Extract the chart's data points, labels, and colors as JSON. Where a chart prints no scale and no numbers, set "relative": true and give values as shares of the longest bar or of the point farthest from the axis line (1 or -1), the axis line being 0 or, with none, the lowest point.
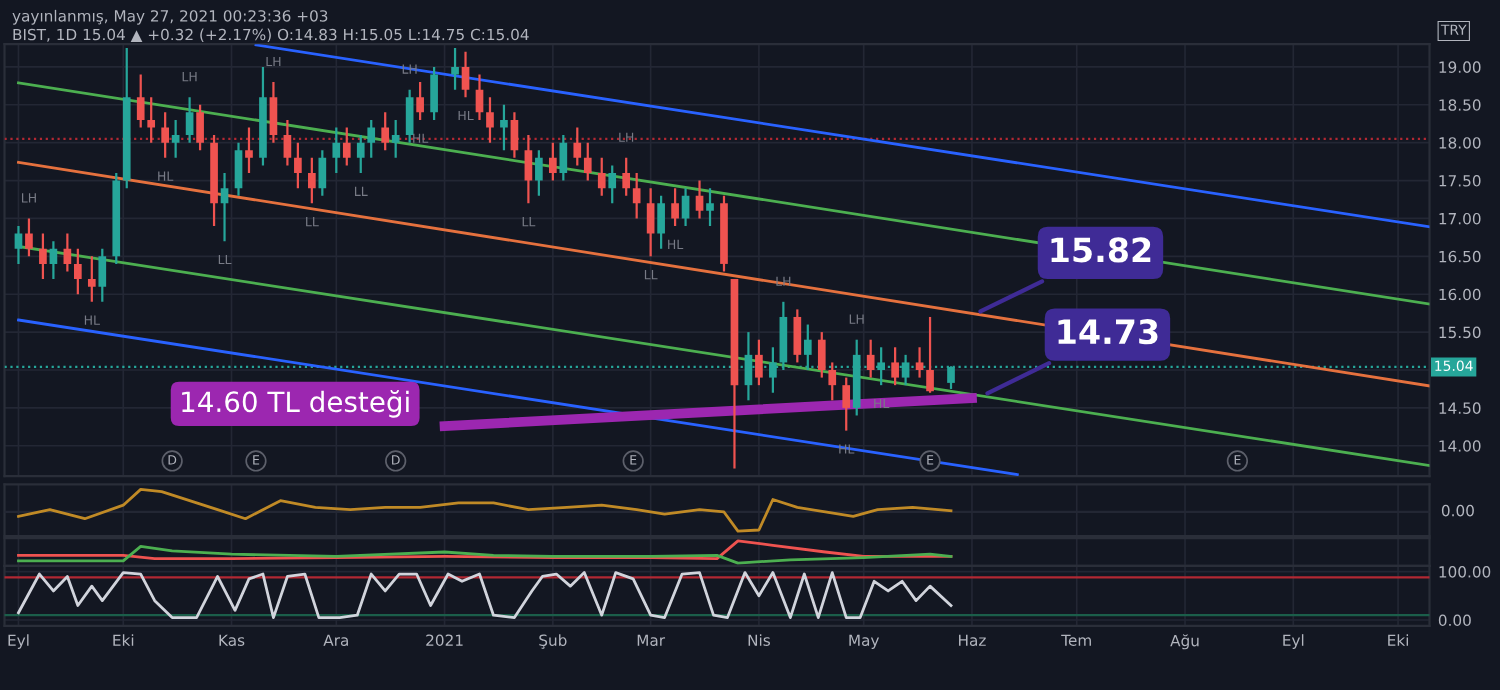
{
  "chart_data": [
    {
      "type": "candlestick",
      "title": "yayınlanmış, May 27, 2021 00:23:36 +03",
      "subtitle": "BIST, 1D 15.04 ▲ +0.32 (+2.17%) O:14.83 H:15.05 L:14.75 C:15.04",
      "ylabel": "TRY",
      "x": [
        "2020-09-01",
        "2020-09-04",
        "2020-09-08",
        "2020-09-11",
        "2020-09-15",
        "2020-09-18",
        "2020-09-22",
        "2020-09-25",
        "2020-09-29",
        "2020-10-02",
        "2020-10-06",
        "2020-10-09",
        "2020-10-13",
        "2020-10-16",
        "2020-10-20",
        "2020-10-23",
        "2020-10-27",
        "2020-10-30",
        "2020-11-03",
        "2020-11-06",
        "2020-11-10",
        "2020-11-13",
        "2020-11-17",
        "2020-11-20",
        "2020-11-24",
        "2020-11-27",
        "2020-12-01",
        "2020-12-04",
        "2020-12-08",
        "2020-12-11",
        "2020-12-15",
        "2020-12-18",
        "2020-12-22",
        "2020-12-25",
        "2020-12-29",
        "2021-01-04",
        "2021-01-07",
        "2021-01-11",
        "2021-01-14",
        "2021-01-18",
        "2021-01-21",
        "2021-01-25",
        "2021-01-28",
        "2021-02-01",
        "2021-02-04",
        "2021-02-08",
        "2021-02-11",
        "2021-02-15",
        "2021-02-18",
        "2021-02-22",
        "2021-02-25",
        "2021-03-01",
        "2021-03-04",
        "2021-03-08",
        "2021-03-11",
        "2021-03-15",
        "2021-03-18",
        "2021-03-22",
        "2021-03-25",
        "2021-03-29",
        "2021-04-01",
        "2021-04-05",
        "2021-04-08",
        "2021-04-12",
        "2021-04-15",
        "2021-04-19",
        "2021-04-22",
        "2021-04-26",
        "2021-04-29",
        "2021-05-03",
        "2021-05-06",
        "2021-05-10",
        "2021-05-13",
        "2021-05-17",
        "2021-05-20",
        "2021-05-26"
      ],
      "ohlc": [
        [
          16.6,
          16.9,
          16.4,
          16.8
        ],
        [
          16.8,
          17.0,
          16.5,
          16.6
        ],
        [
          16.6,
          16.8,
          16.2,
          16.4
        ],
        [
          16.4,
          16.7,
          16.2,
          16.6
        ],
        [
          16.6,
          16.8,
          16.3,
          16.4
        ],
        [
          16.4,
          16.6,
          16.0,
          16.2
        ],
        [
          16.2,
          16.5,
          15.9,
          16.1
        ],
        [
          16.1,
          16.6,
          15.9,
          16.5
        ],
        [
          16.5,
          17.6,
          16.4,
          17.5
        ],
        [
          17.5,
          19.25,
          17.4,
          18.6
        ],
        [
          18.6,
          18.9,
          18.2,
          18.3
        ],
        [
          18.3,
          18.6,
          18.0,
          18.2
        ],
        [
          18.2,
          18.4,
          17.8,
          18.0
        ],
        [
          18.0,
          18.3,
          17.8,
          18.1
        ],
        [
          18.1,
          18.6,
          18.0,
          18.4
        ],
        [
          18.4,
          18.5,
          17.9,
          18.0
        ],
        [
          18.0,
          18.1,
          16.9,
          17.2
        ],
        [
          17.2,
          17.6,
          16.7,
          17.4
        ],
        [
          17.4,
          18.0,
          17.3,
          17.9
        ],
        [
          17.9,
          18.2,
          17.6,
          17.8
        ],
        [
          17.8,
          19.0,
          17.7,
          18.6
        ],
        [
          18.6,
          18.8,
          18.0,
          18.1
        ],
        [
          18.1,
          18.3,
          17.7,
          17.8
        ],
        [
          17.8,
          18.0,
          17.4,
          17.6
        ],
        [
          17.6,
          17.8,
          17.2,
          17.4
        ],
        [
          17.4,
          17.9,
          17.3,
          17.8
        ],
        [
          17.8,
          18.2,
          17.6,
          18.0
        ],
        [
          18.0,
          18.2,
          17.7,
          17.8
        ],
        [
          17.8,
          18.1,
          17.6,
          18.0
        ],
        [
          18.0,
          18.3,
          17.8,
          18.2
        ],
        [
          18.2,
          18.4,
          17.9,
          18.0
        ],
        [
          18.0,
          18.3,
          17.8,
          18.1
        ],
        [
          18.1,
          18.7,
          18.0,
          18.6
        ],
        [
          18.6,
          18.8,
          18.3,
          18.4
        ],
        [
          18.4,
          19.0,
          18.3,
          18.9
        ],
        [
          18.9,
          19.25,
          18.7,
          19.0
        ],
        [
          19.0,
          19.2,
          18.6,
          18.7
        ],
        [
          18.7,
          18.9,
          18.3,
          18.4
        ],
        [
          18.4,
          18.6,
          18.0,
          18.2
        ],
        [
          18.2,
          18.5,
          17.9,
          18.3
        ],
        [
          18.3,
          18.4,
          17.8,
          17.9
        ],
        [
          17.9,
          18.1,
          17.2,
          17.5
        ],
        [
          17.5,
          17.9,
          17.3,
          17.8
        ],
        [
          17.8,
          18.0,
          17.5,
          17.6
        ],
        [
          17.6,
          18.1,
          17.5,
          18.0
        ],
        [
          18.0,
          18.2,
          17.7,
          17.8
        ],
        [
          17.8,
          18.0,
          17.5,
          17.6
        ],
        [
          17.6,
          17.8,
          17.3,
          17.4
        ],
        [
          17.4,
          17.7,
          17.2,
          17.6
        ],
        [
          17.6,
          17.8,
          17.3,
          17.4
        ],
        [
          17.4,
          17.6,
          17.0,
          17.2
        ],
        [
          17.2,
          17.4,
          16.5,
          16.8
        ],
        [
          16.8,
          17.3,
          16.6,
          17.2
        ],
        [
          17.2,
          17.4,
          16.9,
          17.0
        ],
        [
          17.0,
          17.4,
          16.9,
          17.3
        ],
        [
          17.3,
          17.5,
          17.0,
          17.1
        ],
        [
          17.1,
          17.4,
          16.9,
          17.2
        ],
        [
          17.2,
          17.3,
          16.3,
          16.4
        ],
        [
          16.2,
          16.2,
          13.7,
          14.8
        ],
        [
          14.8,
          15.5,
          14.6,
          15.2
        ],
        [
          15.2,
          15.4,
          14.8,
          14.9
        ],
        [
          14.9,
          15.3,
          14.7,
          15.1
        ],
        [
          15.1,
          15.9,
          15.0,
          15.7
        ],
        [
          15.7,
          15.8,
          15.1,
          15.2
        ],
        [
          15.2,
          15.6,
          15.0,
          15.4
        ],
        [
          15.4,
          15.5,
          14.9,
          15.0
        ],
        [
          15.0,
          15.1,
          14.6,
          14.8
        ],
        [
          14.8,
          14.9,
          14.2,
          14.5
        ],
        [
          14.5,
          15.4,
          14.4,
          15.2
        ],
        [
          15.2,
          15.4,
          14.9,
          15.0
        ],
        [
          15.0,
          15.3,
          14.8,
          15.1
        ],
        [
          15.1,
          15.3,
          14.8,
          14.9
        ],
        [
          14.9,
          15.2,
          14.8,
          15.1
        ],
        [
          15.1,
          15.3,
          14.9,
          15.0
        ],
        [
          15.0,
          15.7,
          14.7,
          14.72
        ],
        [
          14.83,
          15.05,
          14.75,
          15.04
        ]
      ],
      "colors": [
        "#26a69a",
        "#ef5350",
        "#ef5350",
        "#26a69a",
        "#ef5350",
        "#ef5350",
        "#ef5350",
        "#26a69a",
        "#26a69a",
        "#26a69a",
        "#ef5350",
        "#ef5350",
        "#ef5350",
        "#26a69a",
        "#26a69a",
        "#ef5350",
        "#ef5350",
        "#26a69a",
        "#26a69a",
        "#ef5350",
        "#26a69a",
        "#ef5350",
        "#ef5350",
        "#ef5350",
        "#ef5350",
        "#26a69a",
        "#26a69a",
        "#ef5350",
        "#26a69a",
        "#26a69a",
        "#ef5350",
        "#26a69a",
        "#26a69a",
        "#ef5350",
        "#26a69a",
        "#26a69a",
        "#ef5350",
        "#ef5350",
        "#ef5350",
        "#26a69a",
        "#ef5350",
        "#ef5350",
        "#26a69a",
        "#ef5350",
        "#26a69a",
        "#ef5350",
        "#ef5350",
        "#ef5350",
        "#26a69a",
        "#ef5350",
        "#ef5350",
        "#ef5350",
        "#26a69a",
        "#ef5350",
        "#26a69a",
        "#ef5350",
        "#26a69a",
        "#ef5350",
        "#ef5350",
        "#26a69a",
        "#ef5350",
        "#26a69a",
        "#26a69a",
        "#ef5350",
        "#26a69a",
        "#ef5350",
        "#ef5350",
        "#ef5350",
        "#26a69a",
        "#ef5350",
        "#26a69a",
        "#ef5350",
        "#26a69a",
        "#ef5350",
        "#ef5350",
        "#26a69a"
      ],
      "series": [
        {
          "type": "line",
          "color": "#2962ff",
          "x": [
            "2020-11-08",
            "2021-10-10"
          ],
          "values": [
            19.29,
            16.89
          ]
        },
        {
          "type": "line",
          "color": "#4caf50",
          "x": [
            "2020-09-01",
            "2021-10-10"
          ],
          "values": [
            18.79,
            15.87
          ]
        },
        {
          "type": "line",
          "color": "#e5713e",
          "x": [
            "2020-09-01",
            "2021-10-10"
          ],
          "values": [
            17.74,
            14.79
          ]
        },
        {
          "type": "line",
          "color": "#4caf50",
          "x": [
            "2020-09-01",
            "2021-10-10"
          ],
          "values": [
            16.63,
            13.74
          ]
        },
        {
          "type": "line",
          "color": "#2962ff",
          "x": [
            "2020-09-01",
            "2021-06-14"
          ],
          "values": [
            15.66,
            13.62
          ]
        },
        {
          "type": "line",
          "color": "#9c27b0",
          "x": [
            "2021-01-01",
            "2021-06-01"
          ],
          "values": [
            14.26,
            14.63
          ]
        }
      ],
      "ref_lines": [
        {
          "axis": "y",
          "value": 18.05,
          "color": "#b22833",
          "line_style": "dotted"
        },
        {
          "axis": "y",
          "value": 15.04,
          "label": "15.04",
          "color": "#26a69a",
          "line_style": "dotted"
        }
      ],
      "annotations": [
        {
          "text": "15.82",
          "x": "2021-06-02",
          "y": 15.74
        },
        {
          "text": "14.73",
          "x": "2021-06-04",
          "y": 14.66
        },
        {
          "text": "14.60 TL desteği",
          "x": "2021-01-01",
          "y": 14.26
        },
        {
          "text": "D",
          "x": "2020-10-15"
        },
        {
          "text": "E",
          "x": "2020-11-08"
        },
        {
          "text": "D",
          "x": "2020-12-18"
        },
        {
          "text": "E",
          "x": "2021-02-24"
        },
        {
          "text": "E",
          "x": "2021-05-20"
        },
        {
          "text": "E",
          "x": "2021-08-16"
        },
        {
          "text": "LH",
          "x": "2020-09-04",
          "y": 17.0
        },
        {
          "text": "HL",
          "x": "2020-09-22",
          "y": 15.9
        },
        {
          "text": "HL",
          "x": "2020-10-13",
          "y": 17.8
        },
        {
          "text": "LH",
          "x": "2020-10-20",
          "y": 18.6
        },
        {
          "text": "LL",
          "x": "2020-10-30",
          "y": 16.7
        },
        {
          "text": "LH",
          "x": "2020-11-13",
          "y": 18.8
        },
        {
          "text": "LL",
          "x": "2020-11-24",
          "y": 17.2
        },
        {
          "text": "LL",
          "x": "2020-12-08",
          "y": 17.6
        },
        {
          "text": "LH",
          "x": "2020-12-22",
          "y": 18.7
        },
        {
          "text": "HL",
          "x": "2020-12-25",
          "y": 18.3
        },
        {
          "text": "HL",
          "x": "2021-01-07",
          "y": 18.6
        },
        {
          "text": "LL",
          "x": "2021-01-25",
          "y": 17.2
        },
        {
          "text": "LH",
          "x": "2021-02-22",
          "y": 17.8
        },
        {
          "text": "LL",
          "x": "2021-03-01",
          "y": 16.5
        },
        {
          "text": "HL",
          "x": "2021-03-08",
          "y": 16.9
        },
        {
          "text": "LH",
          "x": "2021-04-08",
          "y": 15.9
        },
        {
          "text": "HL",
          "x": "2021-04-26",
          "y": 14.2
        },
        {
          "text": "LH",
          "x": "2021-04-29",
          "y": 15.4
        },
        {
          "text": "HL",
          "x": "2021-05-06",
          "y": 14.8
        }
      ],
      "xlim": [
        "2020-08-28",
        "2021-10-10"
      ],
      "xticks": [
        {
          "value": "2020-09-01",
          "label": null
        },
        {
          "value": "2020-10-01",
          "label": null
        },
        {
          "value": "2020-11-01",
          "label": null
        },
        {
          "value": "2020-12-01",
          "label": null
        },
        {
          "value": "2021-01-01",
          "label": null
        },
        {
          "value": "2021-02-01",
          "label": null
        },
        {
          "value": "2021-03-01",
          "label": null
        },
        {
          "value": "2021-04-01",
          "label": null
        },
        {
          "value": "2021-05-01",
          "label": null
        },
        {
          "value": "2021-06-01",
          "label": null
        },
        {
          "value": "2021-07-01",
          "label": null
        },
        {
          "value": "2021-08-01",
          "label": null
        },
        {
          "value": "2021-09-01",
          "label": null
        },
        {
          "value": "2021-10-01",
          "label": null
        }
      ],
      "ylim": [
        13.6,
        19.3
      ],
      "yticks": [
        {
          "value": 14,
          "label": "14.00"
        },
        {
          "value": 14.5,
          "label": "14.50"
        },
        {
          "value": 15,
          "label": null
        },
        {
          "value": 15.5,
          "label": "15.50"
        },
        {
          "value": 16,
          "label": "16.00"
        },
        {
          "value": 16.5,
          "label": "16.50"
        },
        {
          "value": 17,
          "label": "17.00"
        },
        {
          "value": 17.5,
          "label": "17.50"
        },
        {
          "value": 18,
          "label": "18.00"
        },
        {
          "value": 18.5,
          "label": "18.50"
        },
        {
          "value": 19,
          "label": "19.00"
        }
      ],
      "tick_labels": "y",
      "grid": true
    },
    {
      "type": "line",
      "relative": true,
      "tick_labels": false,
      "grid": true,
      "series": [
        {
          "color": "#c08a26",
          "x": [
            "2020-09-01",
            "2020-09-10",
            "2020-09-20",
            "2020-10-01",
            "2020-10-06",
            "2020-10-12",
            "2020-10-20",
            "2020-10-28",
            "2020-11-05",
            "2020-11-15",
            "2020-11-25",
            "2020-12-05",
            "2020-12-15",
            "2020-12-25",
            "2021-01-05",
            "2021-01-15",
            "2021-01-25",
            "2021-02-05",
            "2021-02-15",
            "2021-02-25",
            "2021-03-05",
            "2021-03-15",
            "2021-03-22",
            "2021-03-26",
            "2021-04-01",
            "2021-04-05",
            "2021-04-12",
            "2021-04-20",
            "2021-04-28",
            "2021-05-05",
            "2021-05-15",
            "2021-05-26"
          ],
          "values": [
            -0.2,
            0.1,
            -0.3,
            0.3,
            1.0,
            0.9,
            0.5,
            0.1,
            -0.3,
            0.5,
            0.2,
            0.1,
            0.2,
            0.2,
            0.4,
            0.4,
            0.1,
            0.2,
            0.3,
            0.1,
            -0.1,
            0.1,
            0.0,
            -0.85,
            -0.8,
            0.55,
            0.2,
            0.0,
            -0.2,
            0.1,
            0.2,
            0.05
          ]
        }
      ],
      "ref_lines": [
        {
          "axis": "y",
          "value": 0,
          "label": "0.00"
        }
      ],
      "xlim": [
        "2020-08-28",
        "2021-10-10"
      ],
      "xticks": [
        {
          "value": "2020-09-01",
          "label": null
        },
        {
          "value": "2020-10-01",
          "label": null
        },
        {
          "value": "2020-11-01",
          "label": null
        },
        {
          "value": "2020-12-01",
          "label": null
        },
        {
          "value": "2021-01-01",
          "label": null
        },
        {
          "value": "2021-02-01",
          "label": null
        },
        {
          "value": "2021-03-01",
          "label": null
        },
        {
          "value": "2021-04-01",
          "label": null
        },
        {
          "value": "2021-05-01",
          "label": null
        },
        {
          "value": "2021-06-01",
          "label": null
        },
        {
          "value": "2021-07-01",
          "label": null
        },
        {
          "value": "2021-08-01",
          "label": null
        },
        {
          "value": "2021-09-01",
          "label": null
        },
        {
          "value": "2021-10-01",
          "label": null
        }
      ]
    },
    {
      "type": "line",
      "relative": true,
      "tick_labels": false,
      "grid": true,
      "series": [
        {
          "color": "#ef5350",
          "x": [
            "2020-09-01",
            "2020-10-01",
            "2020-10-10",
            "2020-11-01",
            "2020-12-01",
            "2021-01-01",
            "2021-02-01",
            "2021-03-01",
            "2021-03-20",
            "2021-03-26",
            "2021-04-05",
            "2021-04-20",
            "2021-05-01",
            "2021-05-26"
          ],
          "values": [
            0.35,
            0.35,
            0.2,
            0.2,
            0.25,
            0.3,
            0.25,
            0.25,
            0.2,
            1.0,
            0.8,
            0.5,
            0.3,
            0.3
          ]
        },
        {
          "color": "#4caf50",
          "x": [
            "2020-09-01",
            "2020-10-01",
            "2020-10-06",
            "2020-10-15",
            "2020-11-01",
            "2020-12-01",
            "2021-01-01",
            "2021-01-15",
            "2021-02-01",
            "2021-03-01",
            "2021-03-20",
            "2021-03-26",
            "2021-04-10",
            "2021-05-01",
            "2021-05-20",
            "2021-05-26"
          ],
          "values": [
            0.1,
            0.1,
            0.75,
            0.55,
            0.4,
            0.3,
            0.5,
            0.35,
            0.3,
            0.3,
            0.35,
            0.0,
            0.15,
            0.25,
            0.4,
            0.3
          ]
        }
      ],
      "xlim": [
        "2020-08-28",
        "2021-10-10"
      ],
      "xticks": [
        {
          "value": "2020-09-01",
          "label": null
        },
        {
          "value": "2020-10-01",
          "label": null
        },
        {
          "value": "2020-11-01",
          "label": null
        },
        {
          "value": "2020-12-01",
          "label": null
        },
        {
          "value": "2021-01-01",
          "label": null
        },
        {
          "value": "2021-02-01",
          "label": null
        },
        {
          "value": "2021-03-01",
          "label": null
        },
        {
          "value": "2021-04-01",
          "label": null
        },
        {
          "value": "2021-05-01",
          "label": null
        },
        {
          "value": "2021-06-01",
          "label": null
        },
        {
          "value": "2021-07-01",
          "label": null
        },
        {
          "value": "2021-08-01",
          "label": null
        },
        {
          "value": "2021-09-01",
          "label": null
        },
        {
          "value": "2021-10-01",
          "label": null
        }
      ]
    },
    {
      "type": "line",
      "grid": true,
      "series": [
        {
          "color": "#d1d4dc",
          "x": [
            "2020-09-01",
            "2020-09-07",
            "2020-09-11",
            "2020-09-15",
            "2020-09-18",
            "2020-09-22",
            "2020-09-25",
            "2020-10-01",
            "2020-10-06",
            "2020-10-10",
            "2020-10-15",
            "2020-10-22",
            "2020-10-28",
            "2020-11-02",
            "2020-11-06",
            "2020-11-10",
            "2020-11-13",
            "2020-11-17",
            "2020-11-22",
            "2020-11-26",
            "2020-12-02",
            "2020-12-07",
            "2020-12-11",
            "2020-12-15",
            "2020-12-19",
            "2020-12-24",
            "2020-12-28",
            "2021-01-02",
            "2021-01-06",
            "2021-01-11",
            "2021-01-15",
            "2021-01-21",
            "2021-01-26",
            "2021-01-29",
            "2021-02-02",
            "2021-02-06",
            "2021-02-10",
            "2021-02-15",
            "2021-02-19",
            "2021-02-24",
            "2021-03-01",
            "2021-03-05",
            "2021-03-10",
            "2021-03-15",
            "2021-03-19",
            "2021-03-23",
            "2021-03-28",
            "2021-04-01",
            "2021-04-05",
            "2021-04-10",
            "2021-04-14",
            "2021-04-18",
            "2021-04-22",
            "2021-04-26",
            "2021-04-30",
            "2021-05-04",
            "2021-05-08",
            "2021-05-12",
            "2021-05-16",
            "2021-05-20",
            "2021-05-26"
          ],
          "values": [
            15,
            95,
            60,
            90,
            30,
            70,
            40,
            98,
            95,
            40,
            5,
            5,
            90,
            20,
            85,
            95,
            5,
            90,
            95,
            5,
            5,
            10,
            95,
            60,
            95,
            95,
            30,
            95,
            80,
            95,
            10,
            5,
            60,
            90,
            95,
            70,
            98,
            10,
            98,
            85,
            10,
            5,
            95,
            98,
            10,
            5,
            98,
            50,
            98,
            5,
            95,
            5,
            98,
            5,
            5,
            80,
            60,
            80,
            40,
            70,
            30
          ]
        }
      ],
      "ref_lines": [
        {
          "axis": "y",
          "value": 88,
          "color": "#b22833"
        },
        {
          "axis": "y",
          "value": 10,
          "color": "#1b5e4a"
        }
      ],
      "xlim": [
        "2020-08-28",
        "2021-10-10"
      ],
      "xticks": [
        {
          "value": "2020-09-01",
          "label": "Eyl"
        },
        {
          "value": "2020-10-01",
          "label": "Eki"
        },
        {
          "value": "2020-11-01",
          "label": "Kas"
        },
        {
          "value": "2020-12-01",
          "label": "Ara"
        },
        {
          "value": "2021-01-01",
          "label": "2021"
        },
        {
          "value": "2021-02-01",
          "label": "Şub"
        },
        {
          "value": "2021-03-01",
          "label": "Mar"
        },
        {
          "value": "2021-04-01",
          "label": "Nis"
        },
        {
          "value": "2021-05-01",
          "label": "May"
        },
        {
          "value": "2021-06-01",
          "label": "Haz"
        },
        {
          "value": "2021-07-01",
          "label": "Tem"
        },
        {
          "value": "2021-08-01",
          "label": "Ağu"
        },
        {
          "value": "2021-09-01",
          "label": "Eyl"
        },
        {
          "value": "2021-10-01",
          "label": "Eki"
        }
      ],
      "ylim": [
        -12,
        112
      ],
      "yticks": [
        {
          "value": 0,
          "label": "0.00"
        },
        {
          "value": 100,
          "label": "100.00"
        }
      ]
    }
  ]
}
